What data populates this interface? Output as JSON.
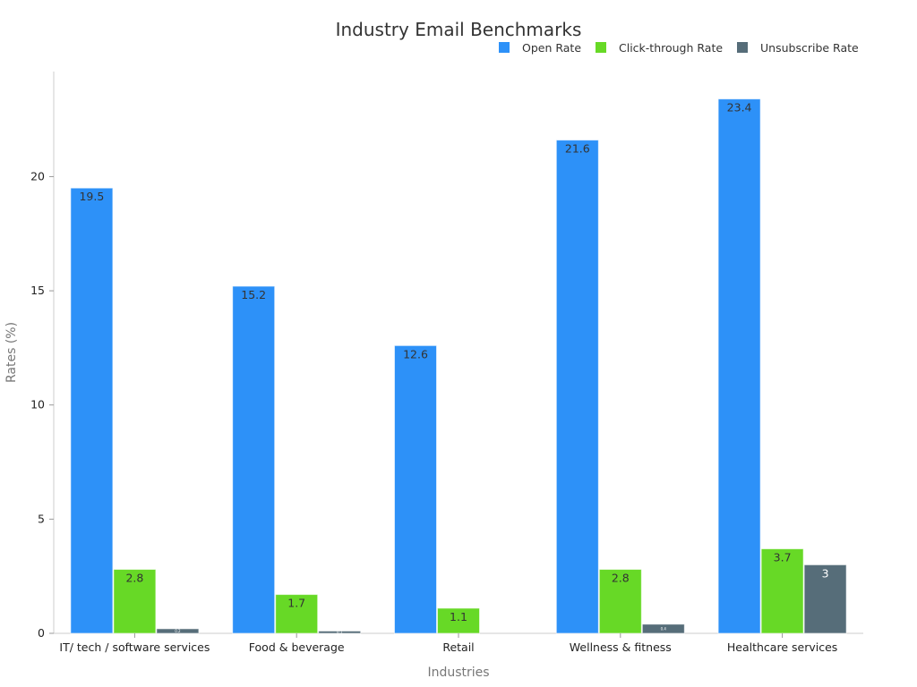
{
  "chart_data": {
    "type": "bar",
    "title": "Industry Email Benchmarks",
    "xlabel": "Industries",
    "ylabel": "Rates (%)",
    "ylim": [
      0,
      24.6
    ],
    "yticks": [
      0,
      5,
      10,
      15,
      20
    ],
    "categories": [
      "IT/ tech / software services",
      "Food & beverage",
      "Retail",
      "Wellness & fitness",
      "Healthcare services"
    ],
    "series": [
      {
        "name": "Open Rate",
        "color": "#2d91f8",
        "values": [
          19.5,
          15.2,
          12.6,
          21.6,
          23.4
        ]
      },
      {
        "name": "Click-through Rate",
        "color": "#67d926",
        "values": [
          2.8,
          1.7,
          1.1,
          2.8,
          3.7
        ]
      },
      {
        "name": "Unsubscribe Rate",
        "color": "#566d79",
        "values": [
          0.2,
          0.1,
          0,
          0.4,
          3
        ]
      }
    ],
    "legend_position": "top-right",
    "grid": false
  }
}
